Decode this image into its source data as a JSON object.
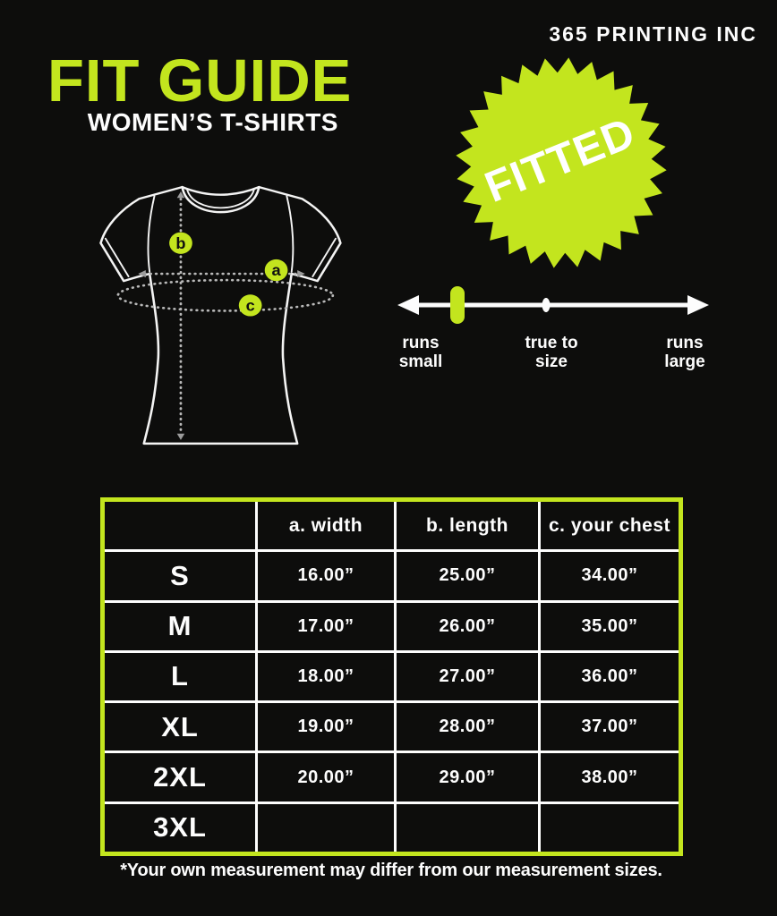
{
  "brand": "365 PRINTING INC",
  "header": {
    "title": "FIT GUIDE",
    "subtitle": "WOMEN’S T-SHIRTS"
  },
  "badge": {
    "label": "FITTED"
  },
  "diagram": {
    "marker_a": "a",
    "marker_b": "b",
    "marker_c": "c"
  },
  "fit_scale": {
    "left_label": {
      "line1": "runs",
      "line2": "small"
    },
    "center_label": {
      "line1": "true to",
      "line2": "size"
    },
    "right_label": {
      "line1": "runs",
      "line2": "large"
    },
    "marker_position": "runs small"
  },
  "size_chart": {
    "headers": [
      "",
      "a. width",
      "b. length",
      "c. your chest"
    ],
    "rows": [
      {
        "size": "S",
        "width": "16.00”",
        "length": "25.00”",
        "chest": "34.00”"
      },
      {
        "size": "M",
        "width": "17.00”",
        "length": "26.00”",
        "chest": "35.00”"
      },
      {
        "size": "L",
        "width": "18.00”",
        "length": "27.00”",
        "chest": "36.00”"
      },
      {
        "size": "XL",
        "width": "19.00”",
        "length": "28.00”",
        "chest": "37.00”"
      },
      {
        "size": "2XL",
        "width": "20.00”",
        "length": "29.00”",
        "chest": "38.00”"
      },
      {
        "size": "3XL",
        "width": "",
        "length": "",
        "chest": ""
      }
    ]
  },
  "footnote": "*Your own measurement may differ from our measurement sizes.",
  "colors": {
    "accent": "#c3e51e",
    "background": "#0d0d0c",
    "text": "#fdfdfd"
  }
}
